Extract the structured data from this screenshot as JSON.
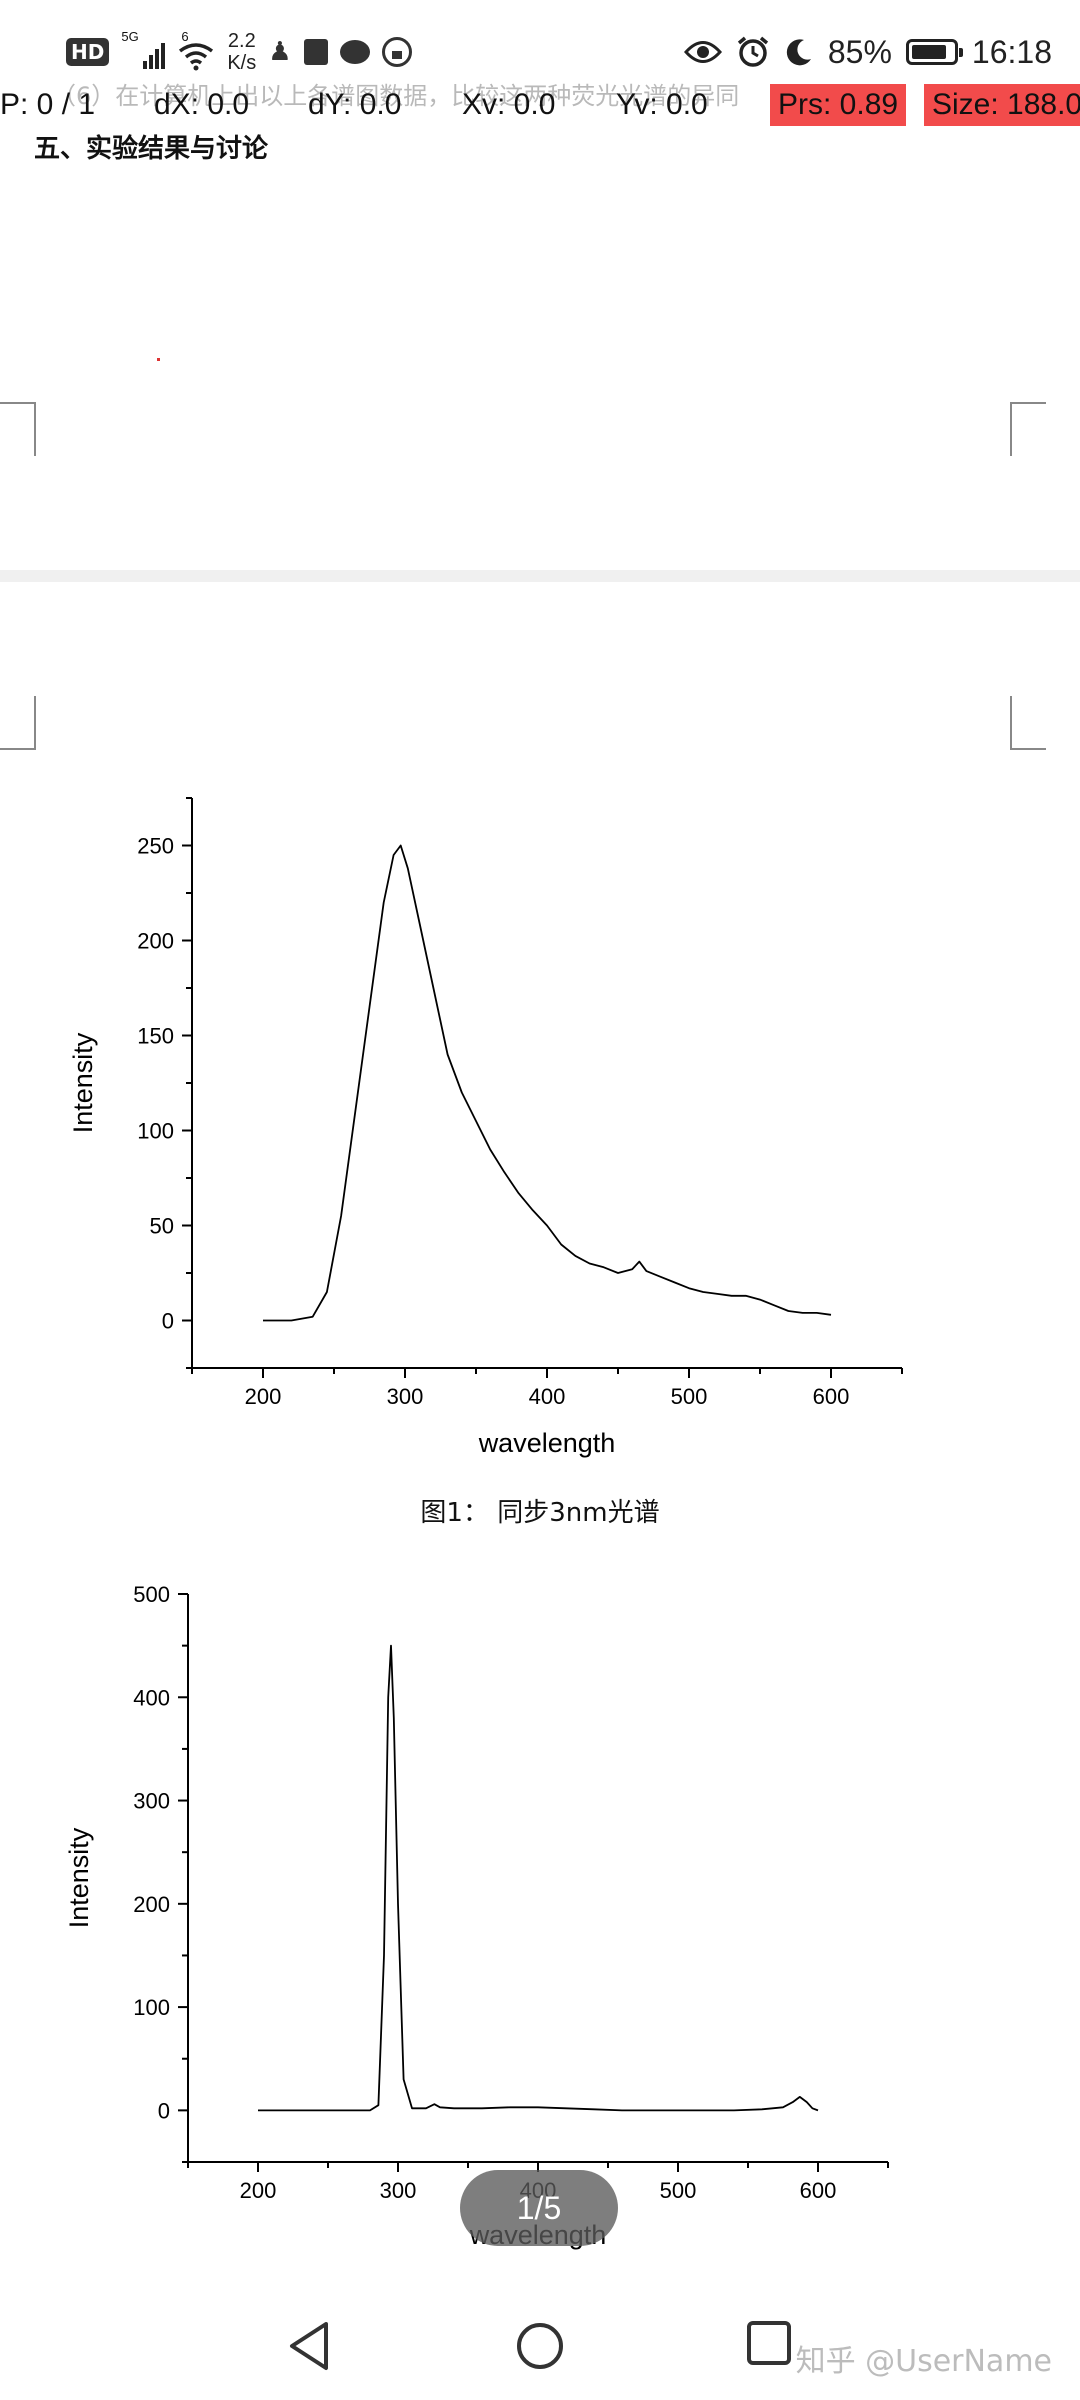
{
  "status_bar": {
    "hd": "HD",
    "network": "5G",
    "network2": "6",
    "speed_value": "2.2",
    "speed_unit": "K/s",
    "battery": "85%",
    "battery_level": 0.85,
    "time": "16:18"
  },
  "debug_overlay": {
    "ghost_text": "（6）在计算机上出以上各谱图数据，比较这两种荧光光谱的异同",
    "pointer": "P: 0 / 1",
    "dx": "dX: 0.0",
    "dy": "dY: 0.0",
    "xv": "Xv: 0.0",
    "yv": "Yv: 0.0",
    "prs": "Prs: 0.89",
    "size": "Size: 188.0"
  },
  "document": {
    "section_title": "五、实验结果与讨论",
    "figure1_caption": "图1：   同步3nm光谱"
  },
  "chart_data": [
    {
      "type": "line",
      "xlabel": "wavelength",
      "ylabel": "Intensity",
      "xlim": [
        150,
        650
      ],
      "ylim": [
        -25,
        275
      ],
      "xticks": [
        200,
        300,
        400,
        500,
        600
      ],
      "yticks": [
        0,
        50,
        100,
        150,
        200,
        250
      ],
      "series": [
        {
          "x": [
            200,
            220,
            235,
            245,
            255,
            265,
            275,
            285,
            292,
            297,
            302,
            310,
            320,
            330,
            340,
            350,
            360,
            370,
            380,
            390,
            400,
            410,
            420,
            430,
            440,
            450,
            460,
            465,
            470,
            480,
            490,
            500,
            510,
            520,
            530,
            540,
            550,
            560,
            570,
            580,
            590,
            600
          ],
          "y": [
            0,
            0,
            2,
            15,
            55,
            110,
            165,
            220,
            245,
            250,
            238,
            210,
            175,
            140,
            120,
            105,
            90,
            78,
            67,
            58,
            50,
            40,
            34,
            30,
            28,
            25,
            27,
            31,
            26,
            23,
            20,
            17,
            15,
            14,
            13,
            13,
            11,
            8,
            5,
            4,
            4,
            3
          ]
        }
      ]
    },
    {
      "type": "line",
      "xlabel": "wavelength",
      "ylabel": "Intensity",
      "xlim": [
        150,
        650
      ],
      "ylim": [
        -50,
        500
      ],
      "xticks": [
        200,
        300,
        400,
        500,
        600
      ],
      "yticks": [
        0,
        100,
        200,
        300,
        400,
        500
      ],
      "series": [
        {
          "x": [
            200,
            250,
            280,
            286,
            290,
            293,
            295,
            297,
            300,
            304,
            310,
            320,
            326,
            330,
            340,
            360,
            380,
            400,
            420,
            440,
            460,
            480,
            500,
            520,
            540,
            560,
            575,
            582,
            587,
            592,
            596,
            600
          ],
          "y": [
            0,
            0,
            0,
            5,
            150,
            400,
            450,
            380,
            200,
            30,
            2,
            2,
            6,
            3,
            2,
            2,
            3,
            3,
            2,
            1,
            0,
            0,
            0,
            0,
            0,
            1,
            3,
            8,
            13,
            8,
            2,
            0
          ]
        }
      ]
    }
  ],
  "pager": {
    "label": "1/5"
  },
  "watermark": "知乎 @UserName"
}
